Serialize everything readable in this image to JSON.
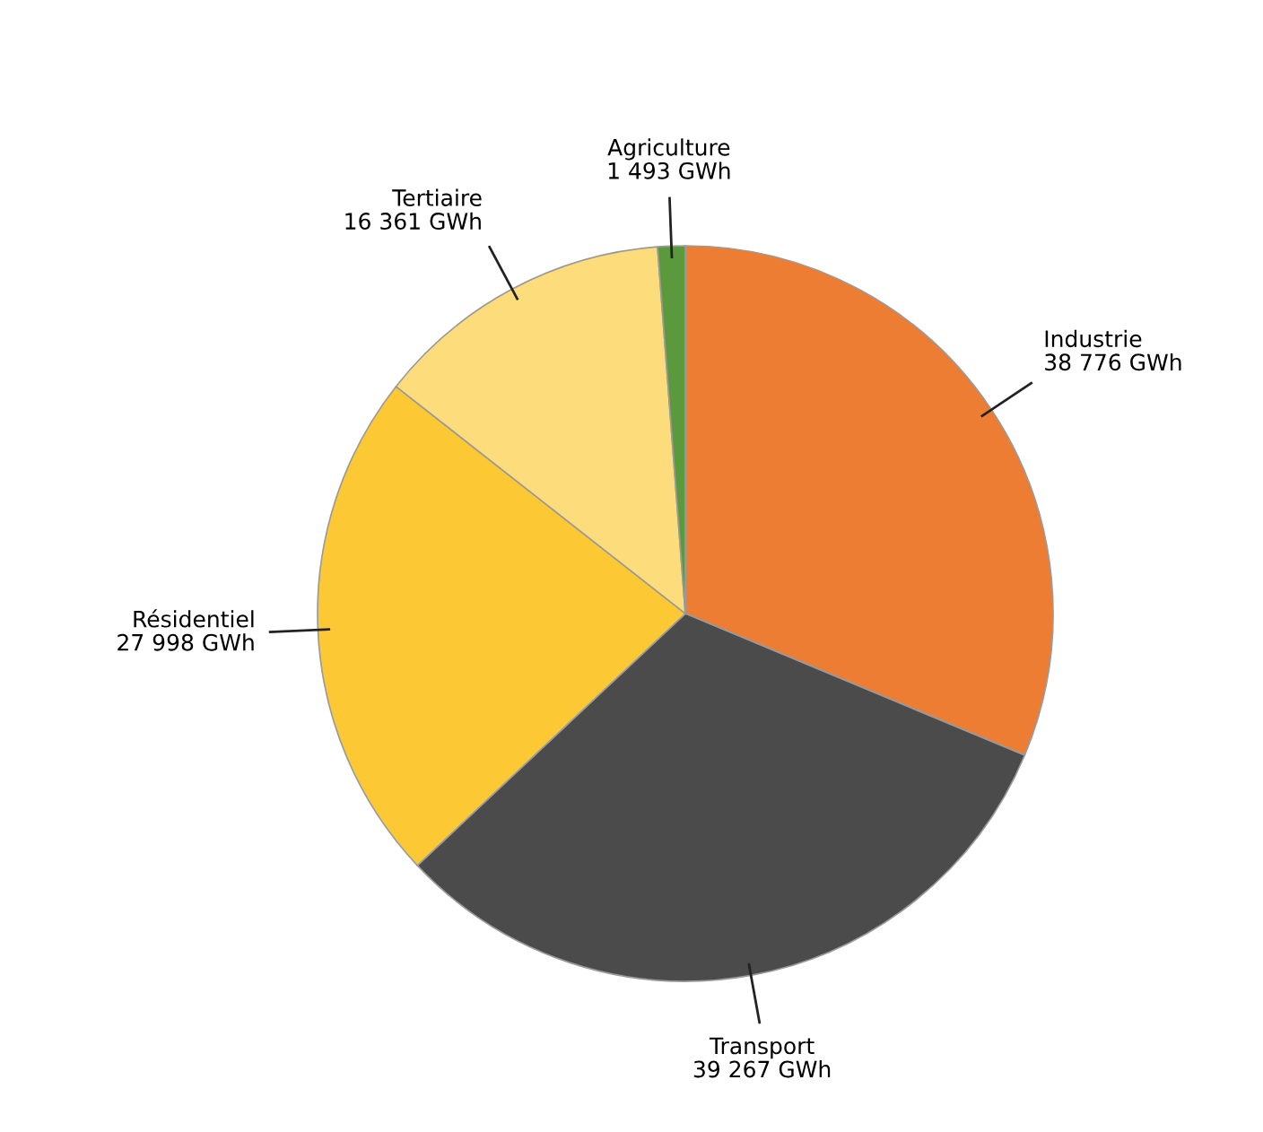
{
  "chart_data": {
    "type": "pie",
    "categories": [
      "Industrie",
      "Transport",
      "Résidentiel",
      "Tertiaire",
      "Agriculture"
    ],
    "values": [
      38776,
      39267,
      27998,
      16361,
      1493
    ],
    "value_labels": [
      "38 776 GWh",
      "39 267 GWh",
      "27 998 GWh",
      "16 361 GWh",
      "1 493 GWh"
    ],
    "colors": [
      "#ec7d33",
      "#4b4b4b",
      "#fcc935",
      "#fddc7c",
      "#5b9a3c"
    ],
    "legend": false
  }
}
